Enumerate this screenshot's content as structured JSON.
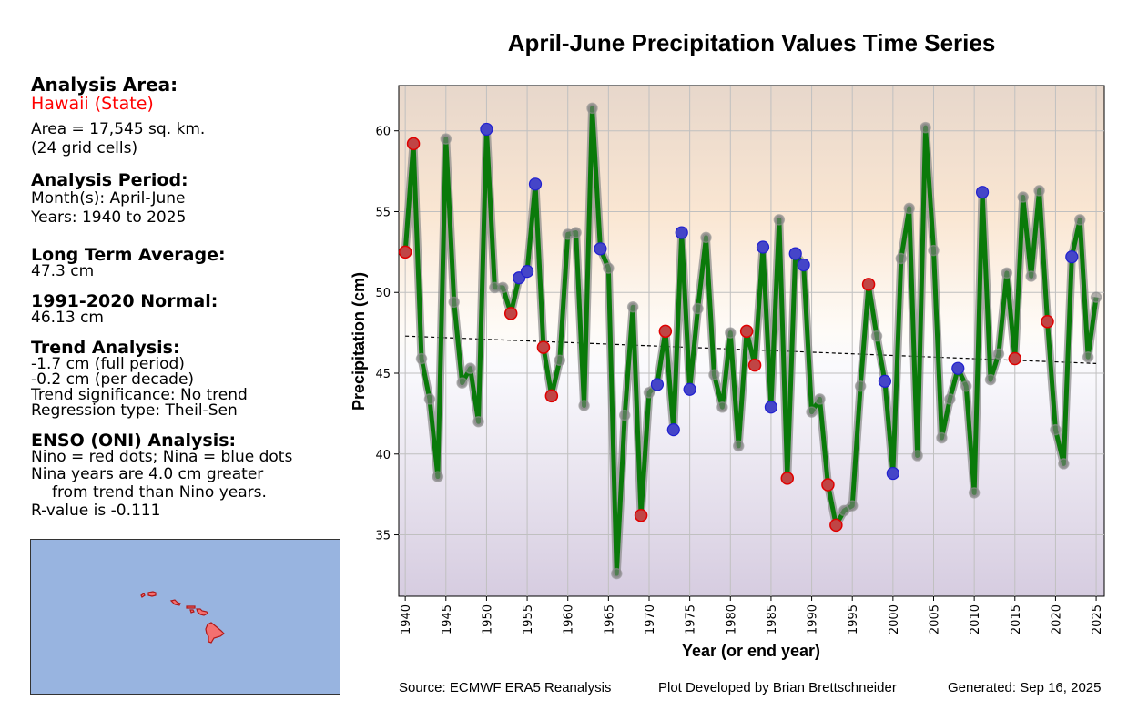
{
  "side": {
    "area_heading": "Analysis Area:",
    "area_name": "Hawaii (State)",
    "area_size": "Area = 17,545 sq. km.",
    "grid_cells": "(24 grid cells)",
    "period_heading": "Analysis Period:",
    "months": "Month(s): April-June",
    "years": "Years: 1940 to 2025",
    "lta_heading": "Long Term Average:",
    "lta_value": "47.3 cm",
    "normal_heading": "1991-2020 Normal:",
    "normal_value": "46.13 cm",
    "trend_heading": "Trend Analysis:",
    "trend_full": "-1.7 cm (full period)",
    "trend_decade": "-0.2 cm (per decade)",
    "trend_sig": "Trend significance: No trend",
    "regression": "Regression type: Theil-Sen",
    "enso_heading": "ENSO (ONI) Analysis:",
    "enso_legend": "Nino = red dots; Nina = blue dots",
    "enso_line1": "Nina years are 4.0 cm greater",
    "enso_line2": "from trend than Nino years.",
    "r_value": "R-value is -0.111"
  },
  "footer": {
    "source": "Source: ECMWF ERA5 Reanalysis",
    "developer": "Plot Developed by Brian Brettschneider",
    "generated": "Generated: Sep 16, 2025"
  },
  "colors": {
    "line": "#0a7a0a",
    "nino": "#e00000",
    "nina": "#2020d0",
    "map_bg": "#98b4e0",
    "land": "#f47070"
  },
  "chart_data": {
    "type": "line",
    "title": "April-June Precipitation Values Time Series",
    "xlabel": "Year (or end year)",
    "ylabel": "Precipitation (cm)",
    "xlim": [
      1939.2,
      2026
    ],
    "ylim": [
      31.2,
      62.8
    ],
    "grid": true,
    "x_ticks": [
      1940,
      1945,
      1950,
      1955,
      1960,
      1965,
      1970,
      1975,
      1980,
      1985,
      1990,
      1995,
      2000,
      2005,
      2010,
      2015,
      2020,
      2025
    ],
    "y_ticks": [
      35,
      40,
      45,
      50,
      55,
      60
    ],
    "x": [
      1940,
      1941,
      1942,
      1943,
      1944,
      1945,
      1946,
      1947,
      1948,
      1949,
      1950,
      1951,
      1952,
      1953,
      1954,
      1955,
      1956,
      1957,
      1958,
      1959,
      1960,
      1961,
      1962,
      1963,
      1964,
      1965,
      1966,
      1967,
      1968,
      1969,
      1970,
      1971,
      1972,
      1973,
      1974,
      1975,
      1976,
      1977,
      1978,
      1979,
      1980,
      1981,
      1982,
      1983,
      1984,
      1985,
      1986,
      1987,
      1988,
      1989,
      1990,
      1991,
      1992,
      1993,
      1994,
      1995,
      1996,
      1997,
      1998,
      1999,
      2000,
      2001,
      2002,
      2003,
      2004,
      2005,
      2006,
      2007,
      2008,
      2009,
      2010,
      2011,
      2012,
      2013,
      2014,
      2015,
      2016,
      2017,
      2018,
      2019,
      2020,
      2021,
      2022,
      2023,
      2024,
      2025
    ],
    "values": [
      52.5,
      59.2,
      45.9,
      43.4,
      38.6,
      59.5,
      49.4,
      44.4,
      45.3,
      42.0,
      60.1,
      50.3,
      50.3,
      48.7,
      50.9,
      51.3,
      56.7,
      46.6,
      43.6,
      45.8,
      53.6,
      53.7,
      43.0,
      61.4,
      52.7,
      51.5,
      32.6,
      42.4,
      49.1,
      36.2,
      43.8,
      44.3,
      47.6,
      41.5,
      53.7,
      44.0,
      49.0,
      53.4,
      44.9,
      42.9,
      47.5,
      40.5,
      47.6,
      45.5,
      52.8,
      42.9,
      54.5,
      38.5,
      52.4,
      51.7,
      42.6,
      43.4,
      38.1,
      35.6,
      36.5,
      36.8,
      44.2,
      50.5,
      47.3,
      44.5,
      38.8,
      52.1,
      55.2,
      39.9,
      60.2,
      52.6,
      41.0,
      43.4,
      45.3,
      44.2,
      37.6,
      56.2,
      44.6,
      46.2,
      51.2,
      45.9,
      55.9,
      51.0,
      56.3,
      48.2,
      41.5,
      39.4,
      52.2,
      54.5,
      46.0,
      49.7
    ],
    "enso": {
      "nino": [
        1940,
        1941,
        1953,
        1957,
        1958,
        1969,
        1972,
        1982,
        1983,
        1987,
        1992,
        1993,
        1997,
        2015,
        2019
      ],
      "nina": [
        1950,
        1954,
        1955,
        1956,
        1964,
        1971,
        1973,
        1974,
        1975,
        1984,
        1985,
        1988,
        1989,
        1999,
        2000,
        2008,
        2011,
        2022
      ]
    },
    "trend": {
      "start": [
        1940,
        47.3
      ],
      "end": [
        2025,
        45.6
      ]
    }
  }
}
